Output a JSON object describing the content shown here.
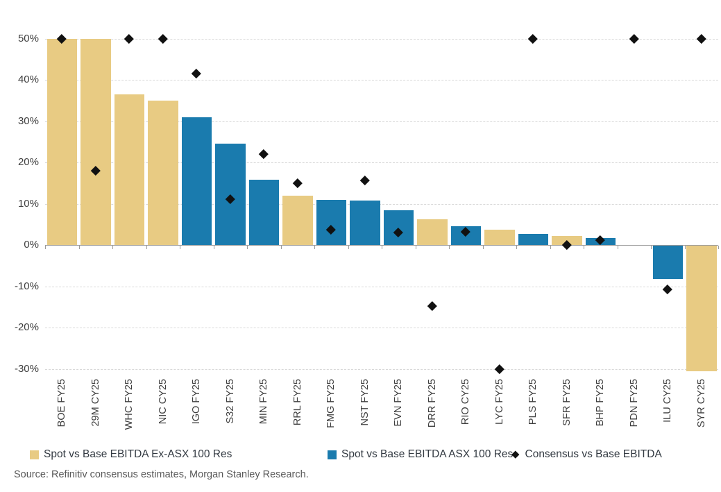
{
  "source": "Source: Refinitiv consensus estimates, Morgan Stanley Research.",
  "colors": {
    "ex_asx100_bar": "#e8cb83",
    "asx100_bar": "#1a7bae",
    "consensus_diamond": "#111111",
    "gridline": "#d8d8d8",
    "axis_line": "#9c9c9c",
    "axis_text": "#3f3f3f",
    "legend_text": "#333a42",
    "source_text": "#595959"
  },
  "chart_data": {
    "type": "bar",
    "title": "",
    "xlabel": "",
    "ylabel": "",
    "y_axis": {
      "min": -31,
      "max": 50,
      "tick_step": 10,
      "tick_values": [
        50,
        40,
        30,
        20,
        10,
        0,
        -10,
        -20,
        -30
      ],
      "tick_labels": [
        "50%",
        "40%",
        "30%",
        "20%",
        "10%",
        "0%",
        "-10%",
        "-20%",
        "-30%"
      ],
      "grid": "dashed"
    },
    "categories": [
      "BOE FY25",
      "29M CY25",
      "WHC FY25",
      "NIC CY25",
      "IGO FY25",
      "S32 FY25",
      "MIN FY25",
      "RRL FY25",
      "FMG FY25",
      "NST FY25",
      "EVN FY25",
      "DRR FY25",
      "RIO CY25",
      "LYC FY25",
      "PLS FY25",
      "SFR FY25",
      "BHP FY25",
      "PDN FY25",
      "ILU CY25",
      "SYR CY25"
    ],
    "series": [
      {
        "name": "Spot vs Base EBITDA Ex-ASX 100 Res",
        "type": "bar",
        "color": "#e8cb83",
        "values": [
          50,
          50,
          36.5,
          35,
          null,
          null,
          null,
          12,
          null,
          null,
          null,
          6.3,
          null,
          3.7,
          null,
          2.2,
          null,
          null,
          null,
          -30.5
        ]
      },
      {
        "name": "Spot vs Base EBITDA ASX 100 Res",
        "type": "bar",
        "color": "#1a7bae",
        "values": [
          null,
          null,
          null,
          null,
          31,
          24.5,
          15.8,
          null,
          11,
          10.8,
          8.4,
          null,
          4.6,
          null,
          2.7,
          null,
          1.6,
          0,
          -8,
          null
        ]
      },
      {
        "name": "Consensus vs Base EBITDA",
        "type": "scatter-diamond",
        "color": "#111111",
        "values": [
          50,
          18,
          50,
          50,
          41.5,
          11.2,
          22,
          15,
          3.8,
          15.7,
          3,
          -14.8,
          3.2,
          -30,
          50,
          0,
          1.2,
          50,
          -10.8,
          50
        ]
      }
    ],
    "legend_position": "bottom"
  }
}
